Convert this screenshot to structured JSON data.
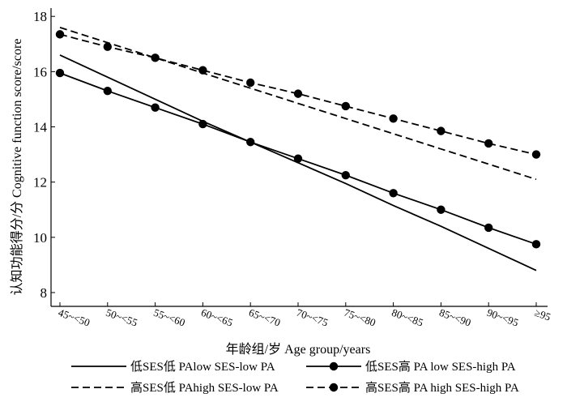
{
  "chart_data": {
    "type": "line",
    "xlabel": "年龄组/岁 Age group/years",
    "ylabel": "认知功能得分/分 Cognitive function score/score",
    "categories": [
      "45~<50",
      "50~<55",
      "55~<60",
      "60~<65",
      "65~<70",
      "70~<75",
      "75~<80",
      "80~<85",
      "85~<90",
      "90~<95",
      "≥95"
    ],
    "ylim": [
      7.5,
      18.3
    ],
    "yticks": [
      "8",
      "10",
      "12",
      "14",
      "16",
      "18"
    ],
    "grid": false,
    "legend_position": "bottom",
    "series": [
      {
        "name": "低SES低 PAlow SES-low PA",
        "style": "solid",
        "marker": false,
        "values": [
          16.6,
          15.8,
          15.0,
          14.2,
          13.45,
          12.7,
          11.95,
          11.15,
          10.4,
          9.6,
          8.8
        ]
      },
      {
        "name": "低SES高 PA low SES-high PA",
        "style": "solid",
        "marker": true,
        "values": [
          15.95,
          15.3,
          14.7,
          14.1,
          13.45,
          12.85,
          12.25,
          11.6,
          11.0,
          10.35,
          9.75
        ]
      },
      {
        "name": "高SES低 PAhigh SES-low PA",
        "style": "dashed",
        "marker": false,
        "values": [
          17.6,
          17.05,
          16.5,
          15.95,
          15.4,
          14.85,
          14.3,
          13.75,
          13.2,
          12.65,
          12.1
        ]
      },
      {
        "name": "高SES高 PA high SES-high PA",
        "style": "dashed",
        "marker": true,
        "values": [
          17.35,
          16.9,
          16.5,
          16.05,
          15.6,
          15.2,
          14.75,
          14.3,
          13.85,
          13.4,
          13.0
        ]
      }
    ]
  }
}
